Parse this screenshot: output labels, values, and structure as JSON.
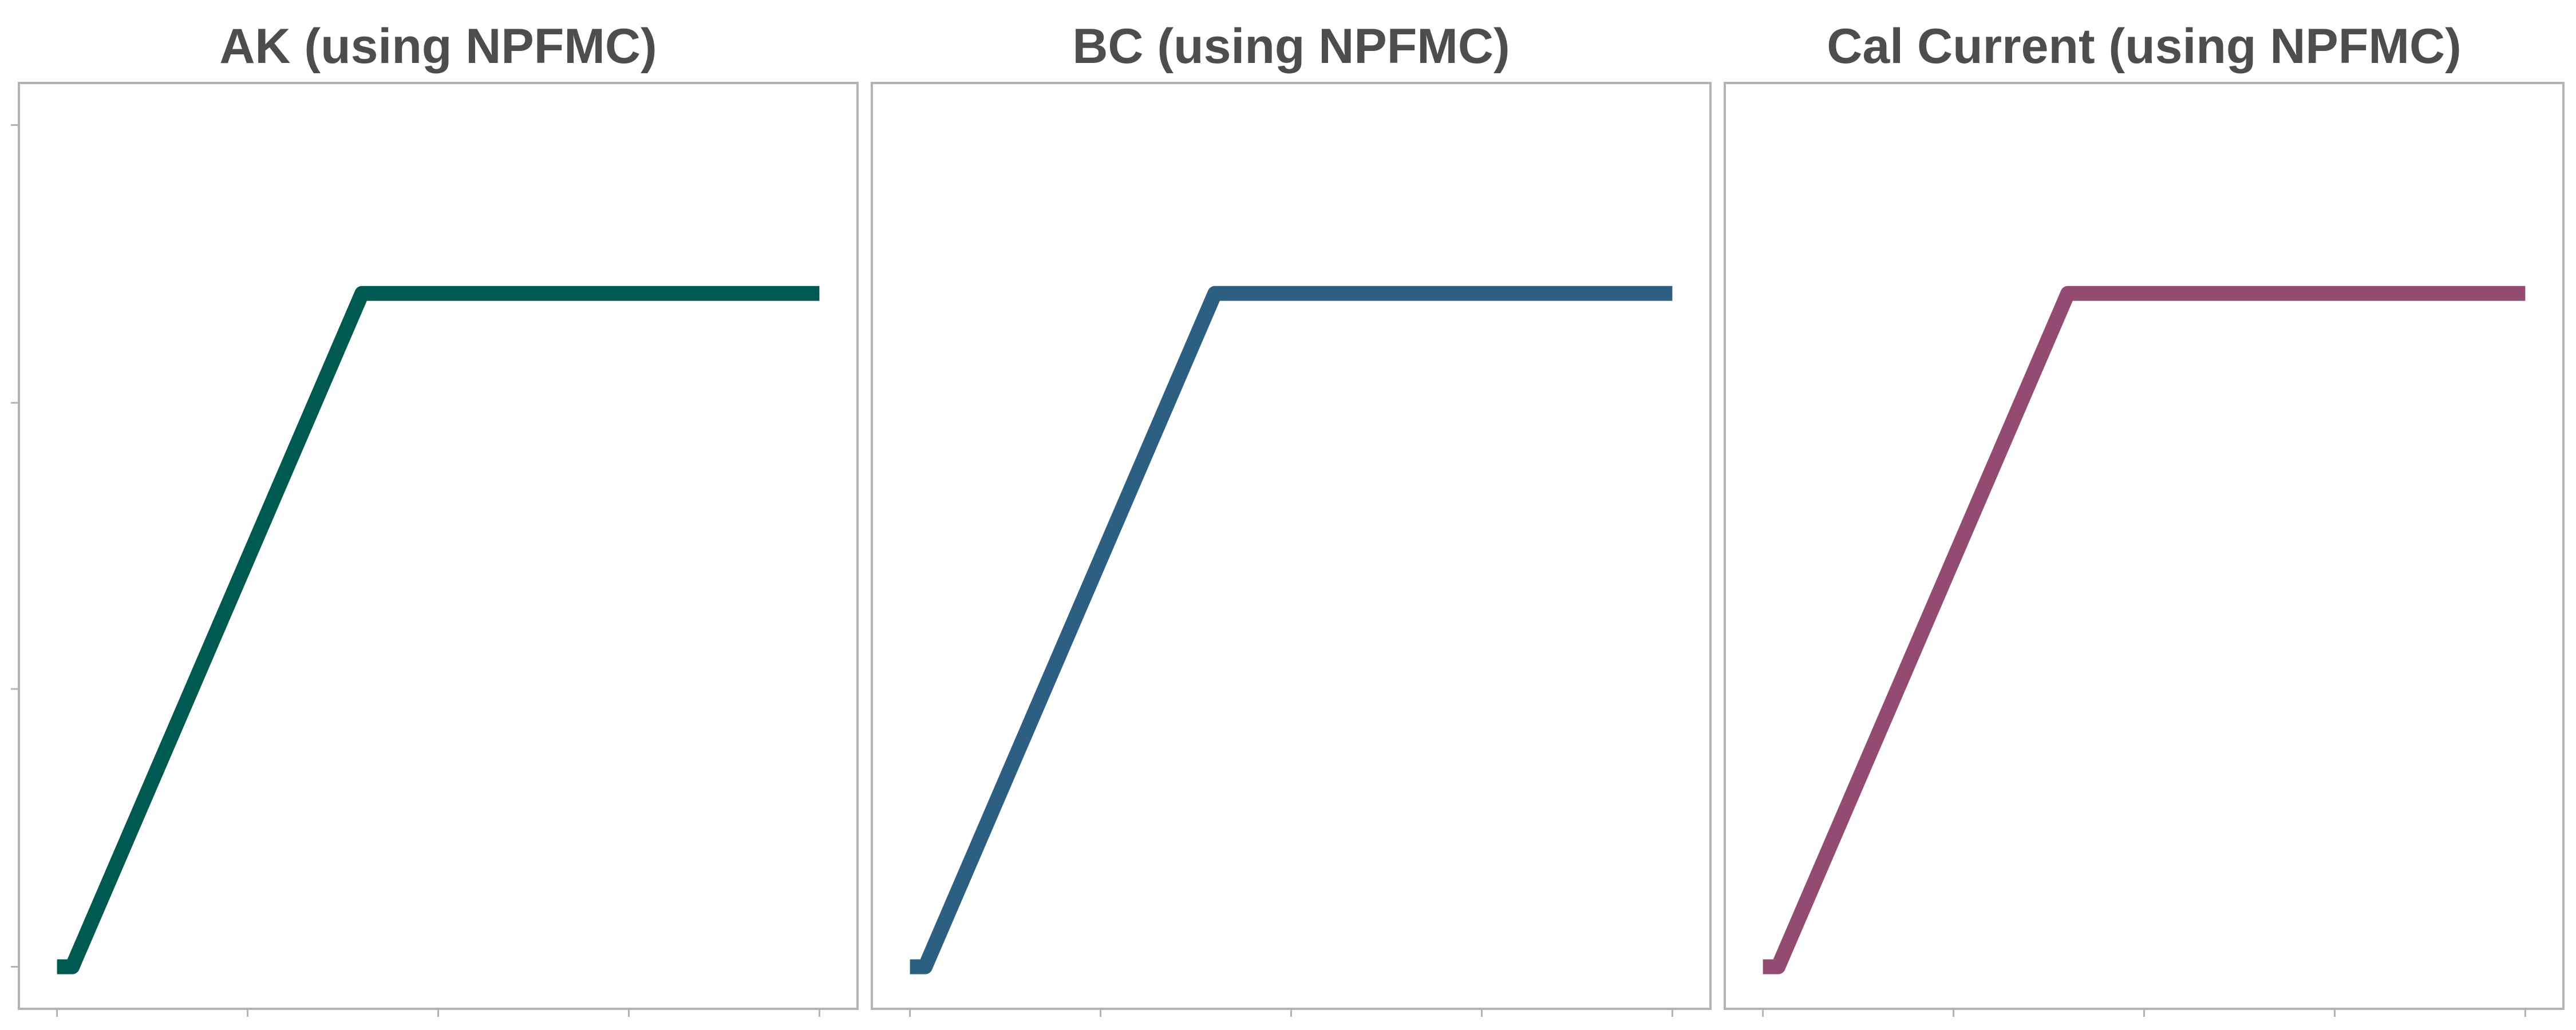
{
  "chart_data": [
    {
      "type": "line",
      "title": "AK (using NPFMC)",
      "color": "#005a52",
      "x": [
        0.0,
        0.04,
        0.8,
        2.0
      ],
      "y": [
        0.0,
        0.0,
        0.8,
        0.8
      ],
      "xlim": [
        -0.1,
        2.1
      ],
      "ylim": [
        -0.05,
        1.05
      ],
      "xticks": [
        0.0,
        0.5,
        1.0,
        1.5,
        2.0
      ],
      "yticks": [
        0.0,
        0.33,
        0.67,
        1.0
      ],
      "xlabel": "",
      "ylabel": "",
      "grid": false
    },
    {
      "type": "line",
      "title": "BC (using NPFMC)",
      "color": "#2d5f83",
      "x": [
        0.0,
        0.04,
        0.8,
        2.0
      ],
      "y": [
        0.0,
        0.0,
        0.8,
        0.8
      ],
      "xlim": [
        -0.1,
        2.1
      ],
      "ylim": [
        -0.05,
        1.05
      ],
      "xticks": [
        0.0,
        0.5,
        1.0,
        1.5,
        2.0
      ],
      "yticks": [
        0.0,
        0.33,
        0.67,
        1.0
      ],
      "xlabel": "",
      "ylabel": "",
      "grid": false
    },
    {
      "type": "line",
      "title": "Cal Current (using NPFMC)",
      "color": "#944b72",
      "x": [
        0.0,
        0.04,
        0.8,
        2.0
      ],
      "y": [
        0.0,
        0.0,
        0.8,
        0.8
      ],
      "xlim": [
        -0.1,
        2.1
      ],
      "ylim": [
        -0.05,
        1.05
      ],
      "xticks": [
        0.0,
        0.5,
        1.0,
        1.5,
        2.0
      ],
      "yticks": [
        0.0,
        0.33,
        0.67,
        1.0
      ],
      "xlabel": "",
      "ylabel": "",
      "grid": false
    }
  ]
}
